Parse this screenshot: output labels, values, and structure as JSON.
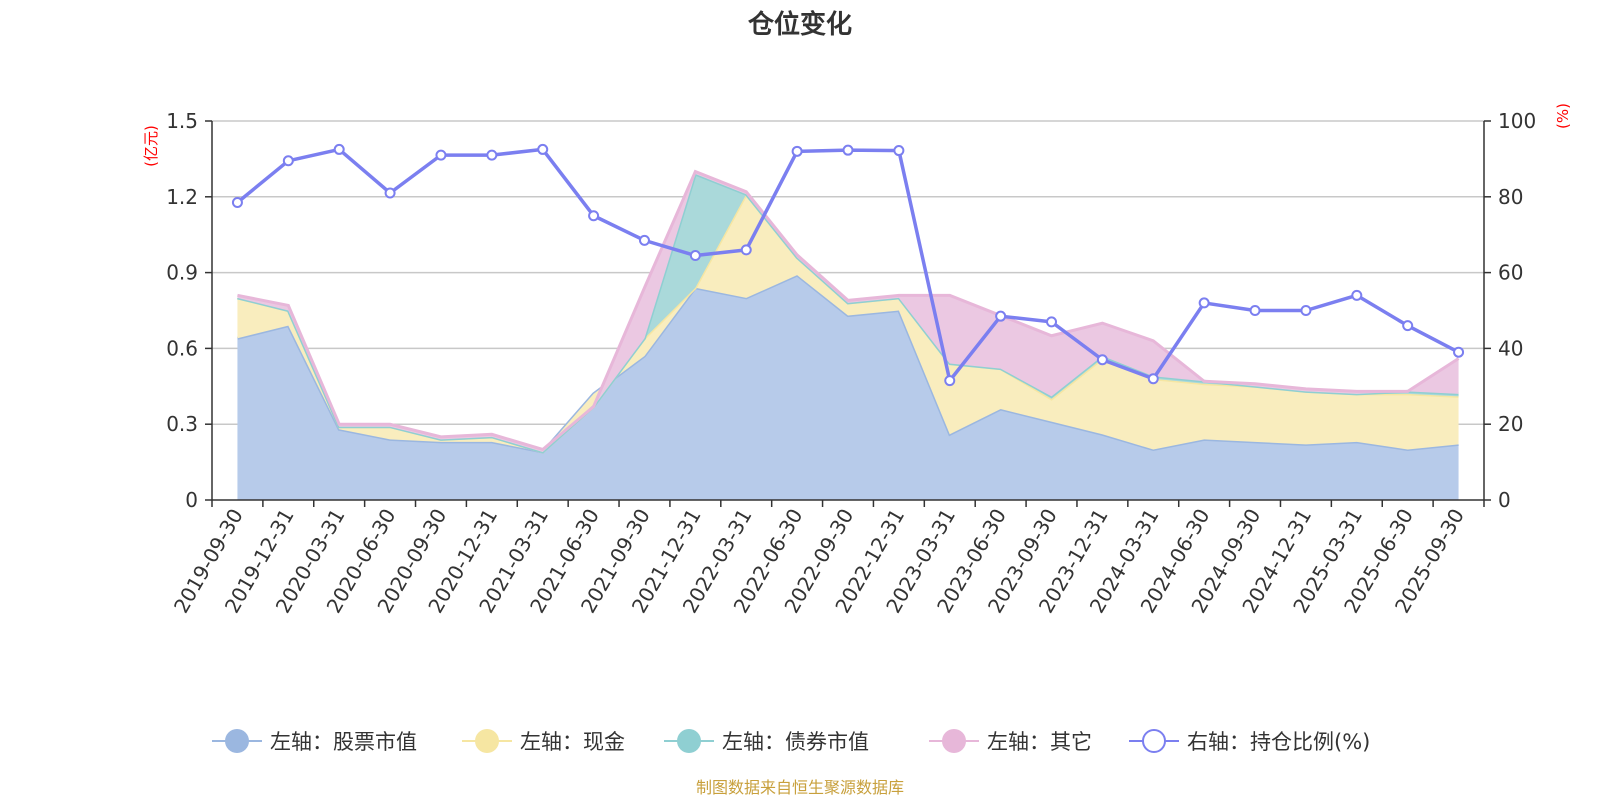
{
  "chart_data": {
    "type": "area",
    "title": "仓位变化",
    "source_note": "制图数据来自恒生聚源数据库",
    "left_axis": {
      "unit_label": "(亿元)",
      "ylim": [
        0,
        1.5
      ],
      "ticks": [
        "0",
        "0.3",
        "0.6",
        "0.9",
        "1.2",
        "1.5"
      ]
    },
    "right_axis": {
      "unit_label": "(%)",
      "ylim": [
        0,
        100
      ],
      "ticks": [
        "0",
        "20",
        "40",
        "60",
        "80",
        "100"
      ]
    },
    "grid": true,
    "legend_position": "bottom",
    "categories": [
      "2019-09-30",
      "2019-12-31",
      "2020-03-31",
      "2020-06-30",
      "2020-09-30",
      "2020-12-31",
      "2021-03-31",
      "2021-06-30",
      "2021-09-30",
      "2021-12-31",
      "2022-03-31",
      "2022-06-30",
      "2022-09-30",
      "2022-12-31",
      "2023-03-31",
      "2023-06-30",
      "2023-09-30",
      "2023-12-31",
      "2024-03-31",
      "2024-06-30",
      "2024-09-30",
      "2024-12-31",
      "2025-03-31",
      "2025-06-30",
      "2025-09-30"
    ],
    "series": [
      {
        "name": "左轴：股票市值",
        "type": "area",
        "axis": "left",
        "color": "#9bb7e0",
        "fill": "#b7cbea",
        "values": [
          0.64,
          0.69,
          0.28,
          0.24,
          0.23,
          0.23,
          0.19,
          0.42,
          0.57,
          0.84,
          0.8,
          0.89,
          0.73,
          0.75,
          0.26,
          0.36,
          0.31,
          0.26,
          0.2,
          0.24,
          0.23,
          0.22,
          0.23,
          0.2,
          0.22
        ]
      },
      {
        "name": "左轴：现金",
        "type": "area",
        "axis": "left",
        "color": "#f6e6a2",
        "fill": "#f9edbe",
        "values": [
          0.16,
          0.06,
          0.01,
          0.05,
          0.01,
          0.02,
          0.0,
          -0.05,
          0.07,
          0.0,
          0.41,
          0.07,
          0.05,
          0.05,
          0.28,
          0.16,
          0.09,
          0.3,
          0.28,
          0.22,
          0.22,
          0.21,
          0.19,
          0.22,
          0.19
        ]
      },
      {
        "name": "左轴：债券市值",
        "type": "area",
        "axis": "left",
        "color": "#8fcfd2",
        "fill": "#aad9da",
        "values": [
          0.0,
          0.0,
          0.0,
          0.0,
          0.0,
          0.0,
          0.0,
          0.0,
          0.0,
          0.45,
          0.0,
          0.0,
          0.0,
          0.0,
          0.0,
          0.0,
          0.01,
          0.01,
          0.01,
          0.01,
          0.0,
          0.0,
          0.0,
          0.01,
          0.01
        ]
      },
      {
        "name": "左轴：其它",
        "type": "area",
        "axis": "left",
        "color": "#e7b7d9",
        "fill": "#ebc8e2",
        "values": [
          0.01,
          0.02,
          0.01,
          0.01,
          0.01,
          0.01,
          0.01,
          0.0,
          0.2,
          0.01,
          0.01,
          0.01,
          0.01,
          0.01,
          0.27,
          0.21,
          0.24,
          0.13,
          0.14,
          0.0,
          0.01,
          0.01,
          0.01,
          0.0,
          0.14
        ]
      },
      {
        "name": "右轴：持仓比例(%)",
        "type": "line",
        "axis": "right",
        "color": "#7b7ff0",
        "values": [
          78.5,
          89.5,
          92.5,
          81.0,
          91.0,
          91.0,
          92.5,
          75.0,
          68.5,
          64.5,
          66.0,
          92.0,
          92.3,
          92.2,
          31.5,
          48.5,
          47.0,
          37.0,
          32.0,
          52.0,
          50.0,
          50.0,
          54.0,
          46.0,
          39.0
        ]
      }
    ]
  }
}
